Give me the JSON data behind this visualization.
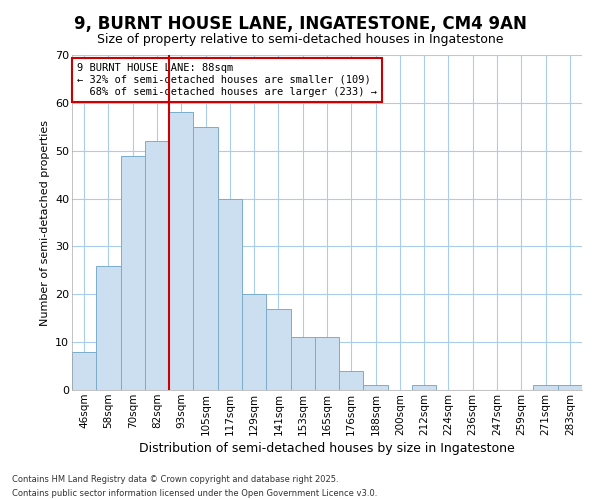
{
  "title": "9, BURNT HOUSE LANE, INGATESTONE, CM4 9AN",
  "subtitle": "Size of property relative to semi-detached houses in Ingatestone",
  "xlabel": "Distribution of semi-detached houses by size in Ingatestone",
  "ylabel": "Number of semi-detached properties",
  "categories": [
    "46sqm",
    "58sqm",
    "70sqm",
    "82sqm",
    "93sqm",
    "105sqm",
    "117sqm",
    "129sqm",
    "141sqm",
    "153sqm",
    "165sqm",
    "176sqm",
    "188sqm",
    "200sqm",
    "212sqm",
    "224sqm",
    "236sqm",
    "247sqm",
    "259sqm",
    "271sqm",
    "283sqm"
  ],
  "values": [
    8,
    26,
    49,
    52,
    58,
    55,
    40,
    20,
    17,
    11,
    11,
    4,
    1,
    0,
    1,
    0,
    0,
    0,
    0,
    1,
    1
  ],
  "bar_color": "#ccdff0",
  "bar_edge_color": "#7aaccc",
  "bar_width": 1.0,
  "property_label": "9 BURNT HOUSE LANE: 88sqm",
  "pct_smaller": 32,
  "pct_larger": 68,
  "n_smaller": 109,
  "n_larger": 233,
  "vline_color": "#cc0000",
  "vline_x_index": 3.5,
  "ylim": [
    0,
    70
  ],
  "yticks": [
    0,
    10,
    20,
    30,
    40,
    50,
    60,
    70
  ],
  "annotation_box_color": "#cc0000",
  "plot_bg_color": "#ffffff",
  "fig_bg_color": "#ffffff",
  "grid_color": "#aaccee",
  "title_fontsize": 12,
  "subtitle_fontsize": 9,
  "footer": "Contains HM Land Registry data © Crown copyright and database right 2025.\nContains public sector information licensed under the Open Government Licence v3.0."
}
